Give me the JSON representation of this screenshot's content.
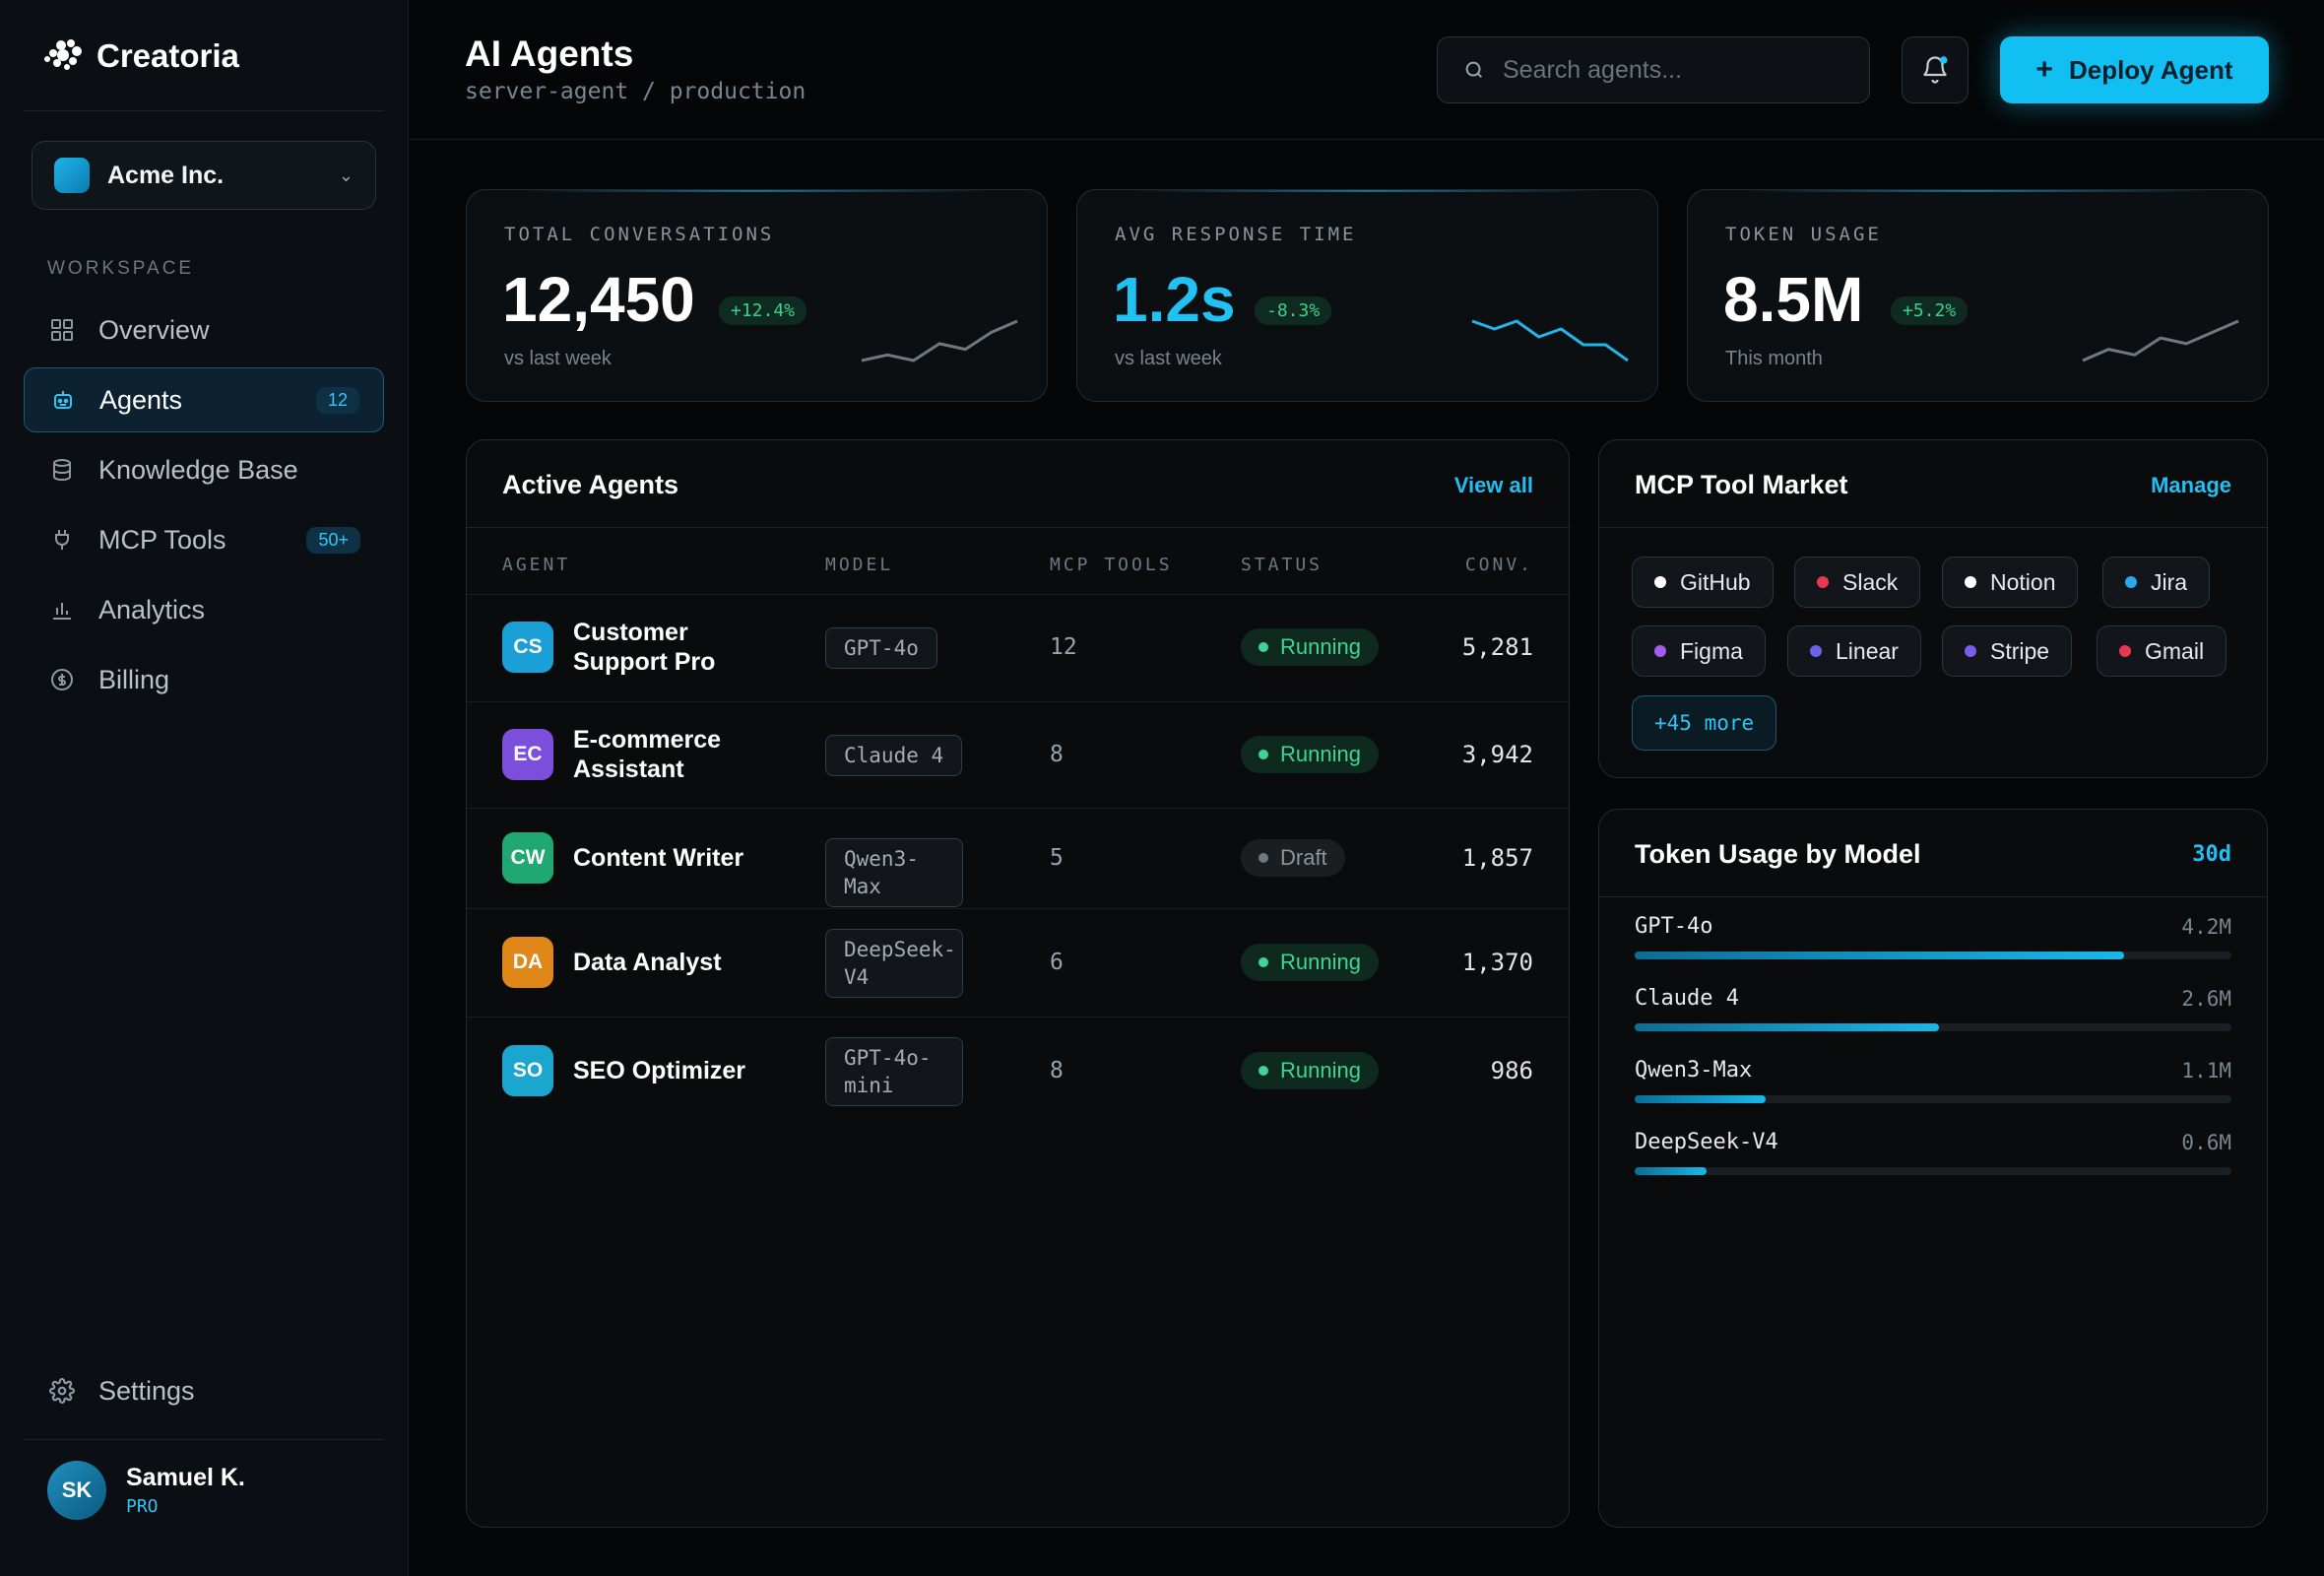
{
  "brand": {
    "name": "Creatoria"
  },
  "org": {
    "name": "Acme Inc."
  },
  "sidebar": {
    "section_label": "WORKSPACE",
    "items": [
      {
        "label": "Overview",
        "icon": "grid-icon"
      },
      {
        "label": "Agents",
        "icon": "robot-icon",
        "count": "12",
        "active": true
      },
      {
        "label": "Knowledge Base",
        "icon": "database-icon"
      },
      {
        "label": "MCP Tools",
        "icon": "plug-icon",
        "count": "50+"
      },
      {
        "label": "Analytics",
        "icon": "bar-chart-icon"
      },
      {
        "label": "Billing",
        "icon": "billing-icon"
      }
    ],
    "settings_label": "Settings"
  },
  "user": {
    "initials": "SK",
    "name": "Samuel K.",
    "plan": "PRO"
  },
  "header": {
    "title": "AI Agents",
    "breadcrumb": "server-agent / production",
    "search_placeholder": "Search agents...",
    "deploy_label": "Deploy Agent"
  },
  "stats": [
    {
      "label": "TOTAL CONVERSATIONS",
      "value": "12,450",
      "delta": "+12.4%",
      "sub": "vs last week",
      "spark": [
        2,
        3,
        2,
        5,
        4,
        7,
        9
      ]
    },
    {
      "label": "AVG RESPONSE TIME",
      "value": "1.2s",
      "delta": "-8.3%",
      "sub": "vs last week",
      "spark": [
        8,
        7,
        8,
        6,
        7,
        5,
        5,
        3
      ]
    },
    {
      "label": "TOKEN USAGE",
      "value": "8.5M",
      "delta": "+5.2%",
      "sub": "This month",
      "spark": [
        2,
        4,
        3,
        6,
        5,
        7,
        9
      ]
    }
  ],
  "active_agents": {
    "title": "Active Agents",
    "link": "View all",
    "columns": [
      "AGENT",
      "MODEL",
      "MCP TOOLS",
      "STATUS",
      "CONV."
    ],
    "rows": [
      {
        "initials": "CS",
        "name": "Customer Support Pro",
        "model": "GPT-4o",
        "tools": "12",
        "status": "Running",
        "conv": "5,281"
      },
      {
        "initials": "EC",
        "name": "E-commerce Assistant",
        "model": "Claude 4",
        "tools": "8",
        "status": "Running",
        "conv": "3,942"
      },
      {
        "initials": "CW",
        "name": "Content Writer",
        "model": "Qwen3-Max",
        "tools": "5",
        "status": "Draft",
        "conv": "1,857"
      },
      {
        "initials": "DA",
        "name": "Data Analyst",
        "model": "DeepSeek-V4",
        "tools": "6",
        "status": "Running",
        "conv": "1,370"
      },
      {
        "initials": "SO",
        "name": "SEO Optimizer",
        "model": "GPT-4o-mini",
        "tools": "8",
        "status": "Running",
        "conv": "986"
      }
    ],
    "badge_colors": [
      "#1a9fd6",
      "#7b4fdc",
      "#1fa873",
      "#e0871a",
      "#1aa6cf"
    ]
  },
  "mcp_market": {
    "title": "MCP Tool Market",
    "link": "Manage",
    "tools": [
      {
        "name": "GitHub",
        "color": "#ffffff"
      },
      {
        "name": "Slack",
        "color": "#e8384f"
      },
      {
        "name": "Notion",
        "color": "#ffffff"
      },
      {
        "name": "Jira",
        "color": "#2aa7e8"
      },
      {
        "name": "Figma",
        "color": "#a35cf0"
      },
      {
        "name": "Linear",
        "color": "#6a63e8"
      },
      {
        "name": "Stripe",
        "color": "#7b5cf0"
      },
      {
        "name": "Gmail",
        "color": "#e8384f"
      }
    ],
    "more": "+45 more"
  },
  "token_usage": {
    "title": "Token Usage by Model",
    "range": "30d",
    "models": [
      {
        "name": "GPT-4o",
        "value": "4.2M",
        "fraction": 0.82
      },
      {
        "name": "Claude 4",
        "value": "2.6M",
        "fraction": 0.51
      },
      {
        "name": "Qwen3-Max",
        "value": "1.1M",
        "fraction": 0.22
      },
      {
        "name": "DeepSeek-V4",
        "value": "0.6M",
        "fraction": 0.12
      }
    ]
  }
}
